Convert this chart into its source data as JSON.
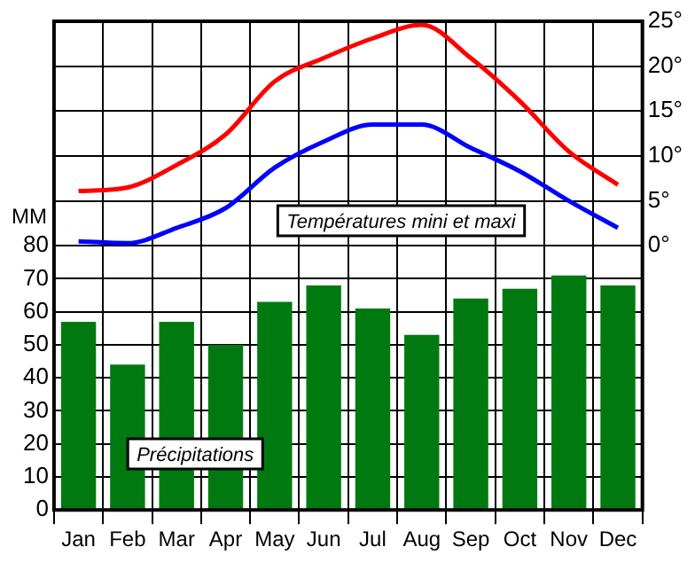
{
  "chart_data": {
    "type": "bar",
    "categories": [
      "Jan",
      "Feb",
      "Mar",
      "Apr",
      "May",
      "Jun",
      "Jul",
      "Aug",
      "Sep",
      "Oct",
      "Nov",
      "Dec"
    ],
    "ylabel": "MM",
    "series": [
      {
        "color": "#007a10",
        "values": [
          57,
          44,
          57,
          50,
          63,
          68,
          61,
          53,
          64,
          67,
          71,
          68
        ]
      },
      {
        "type": "line",
        "axis": "y2",
        "color": "#ff0000",
        "values": [
          6.1,
          6.5,
          9.0,
          12.4,
          18.3,
          20.9,
          23.1,
          24.6,
          20.9,
          16.1,
          10.5,
          6.8
        ]
      },
      {
        "type": "line",
        "axis": "y2",
        "color": "#0000ff",
        "values": [
          0.5,
          0.3,
          2.0,
          4.2,
          8.7,
          11.6,
          13.5,
          13.5,
          10.9,
          8.3,
          5.0,
          2.0
        ]
      }
    ],
    "ylim": [
      0,
      148
    ],
    "yticks": [
      0,
      10,
      20,
      30,
      40,
      50,
      60,
      70,
      80
    ],
    "y2lim": [
      -29.4,
      25
    ],
    "y2ticks": [
      {
        "value": 0,
        "label": "0°"
      },
      {
        "value": 5,
        "label": "5°"
      },
      {
        "value": 10,
        "label": "10°"
      },
      {
        "value": 15,
        "label": "15°"
      },
      {
        "value": 20,
        "label": "20°"
      },
      {
        "value": 25,
        "label": "25°"
      }
    ],
    "annotations": [
      "Températures mini et maxi",
      "Précipitations"
    ],
    "grid": true,
    "legend": false,
    "marker": "none",
    "line_style": "solid"
  }
}
